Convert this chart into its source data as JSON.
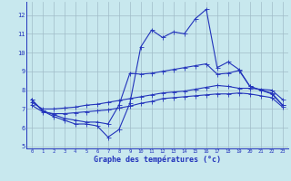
{
  "title": "Graphe des températures (°c)",
  "x": [
    0,
    1,
    2,
    3,
    4,
    5,
    6,
    7,
    8,
    9,
    10,
    11,
    12,
    13,
    14,
    15,
    16,
    17,
    18,
    19,
    20,
    21,
    22,
    23
  ],
  "curve1": [
    7.5,
    6.9,
    6.6,
    6.4,
    6.2,
    6.2,
    6.1,
    5.5,
    5.9,
    7.3,
    10.3,
    11.2,
    10.8,
    11.1,
    11.0,
    11.8,
    12.3,
    9.2,
    9.5,
    9.1,
    8.2,
    8.0,
    7.8,
    7.2
  ],
  "curve2": [
    7.5,
    6.9,
    6.7,
    6.5,
    6.4,
    6.3,
    6.3,
    6.2,
    7.2,
    8.9,
    8.85,
    8.9,
    9.0,
    9.1,
    9.2,
    9.3,
    9.4,
    8.85,
    8.9,
    9.05,
    8.2,
    8.0,
    7.85,
    7.2
  ],
  "curve3": [
    7.35,
    7.0,
    7.0,
    7.05,
    7.1,
    7.2,
    7.25,
    7.35,
    7.45,
    7.55,
    7.65,
    7.75,
    7.85,
    7.9,
    7.95,
    8.05,
    8.15,
    8.25,
    8.2,
    8.1,
    8.1,
    8.05,
    8.0,
    7.5
  ],
  "curve4": [
    7.2,
    6.85,
    6.75,
    6.75,
    6.8,
    6.85,
    6.9,
    6.95,
    7.05,
    7.15,
    7.3,
    7.4,
    7.55,
    7.6,
    7.65,
    7.7,
    7.75,
    7.8,
    7.8,
    7.85,
    7.8,
    7.7,
    7.6,
    7.1
  ],
  "ylim_min": 4.9,
  "ylim_max": 12.7,
  "yticks": [
    5,
    6,
    7,
    8,
    9,
    10,
    11,
    12
  ],
  "bg_color": "#c8e8ee",
  "line_color": "#2233bb",
  "grid_color": "#a0bcc8"
}
